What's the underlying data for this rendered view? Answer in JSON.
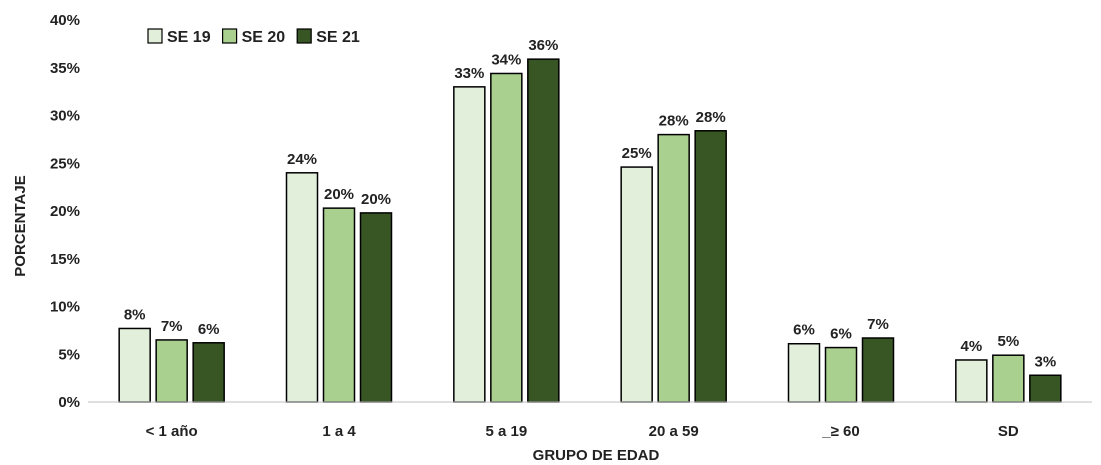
{
  "chart_data": {
    "type": "bar",
    "xlabel": "GRUPO DE EDAD",
    "ylabel": "PORCENTAJE",
    "ylim": [
      0,
      40
    ],
    "y_ticks": [
      "0%",
      "5%",
      "10%",
      "15%",
      "20%",
      "25%",
      "30%",
      "35%",
      "40%"
    ],
    "grid": false,
    "legend_position": "top-left",
    "categories": [
      "< 1 año",
      "1 a 4",
      "5 a 19",
      "20 a 59",
      "_≥ 60",
      "SD"
    ],
    "series": [
      {
        "name": "SE 19",
        "color": "#e2efda",
        "values": [
          7.7,
          24.0,
          33.0,
          24.6,
          6.1,
          4.4
        ],
        "labels": [
          "8%",
          "24%",
          "33%",
          "25%",
          "6%",
          "4%"
        ]
      },
      {
        "name": "SE 20",
        "color": "#a9d08e",
        "values": [
          6.5,
          20.3,
          34.4,
          28.0,
          5.7,
          4.9
        ],
        "labels": [
          "7%",
          "20%",
          "34%",
          "28%",
          "6%",
          "5%"
        ]
      },
      {
        "name": "SE 21",
        "color": "#375623",
        "values": [
          6.2,
          19.8,
          35.9,
          28.4,
          6.7,
          2.8
        ],
        "labels": [
          "6%",
          "20%",
          "36%",
          "28%",
          "7%",
          "3%"
        ]
      }
    ]
  }
}
